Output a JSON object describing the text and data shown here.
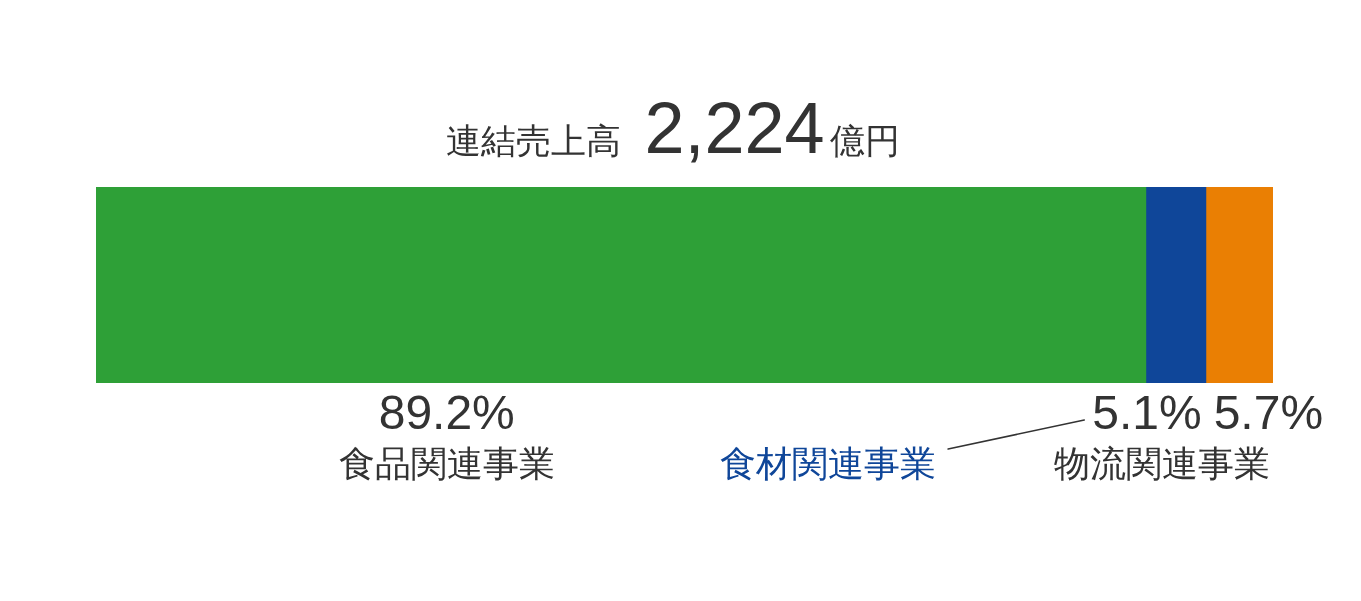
{
  "chart_data": {
    "type": "bar",
    "orientation": "horizontal",
    "stacked": true,
    "title": "連結売上高 2,224億円",
    "categories": [
      null
    ],
    "series": [
      {
        "name": "食品関連事業",
        "color": "#2ea037",
        "values": [
          89.2
        ],
        "value_labels": [
          "89.2%"
        ]
      },
      {
        "name": "食材関連事業",
        "color": "#0f4699",
        "values": [
          5.1
        ],
        "value_labels": [
          "5.1%"
        ]
      },
      {
        "name": "物流関連事業",
        "color": "#ea7f03",
        "values": [
          5.7
        ],
        "value_labels": [
          "5.7%"
        ]
      }
    ],
    "xlim": [
      0,
      100
    ],
    "tick_labels": false
  }
}
